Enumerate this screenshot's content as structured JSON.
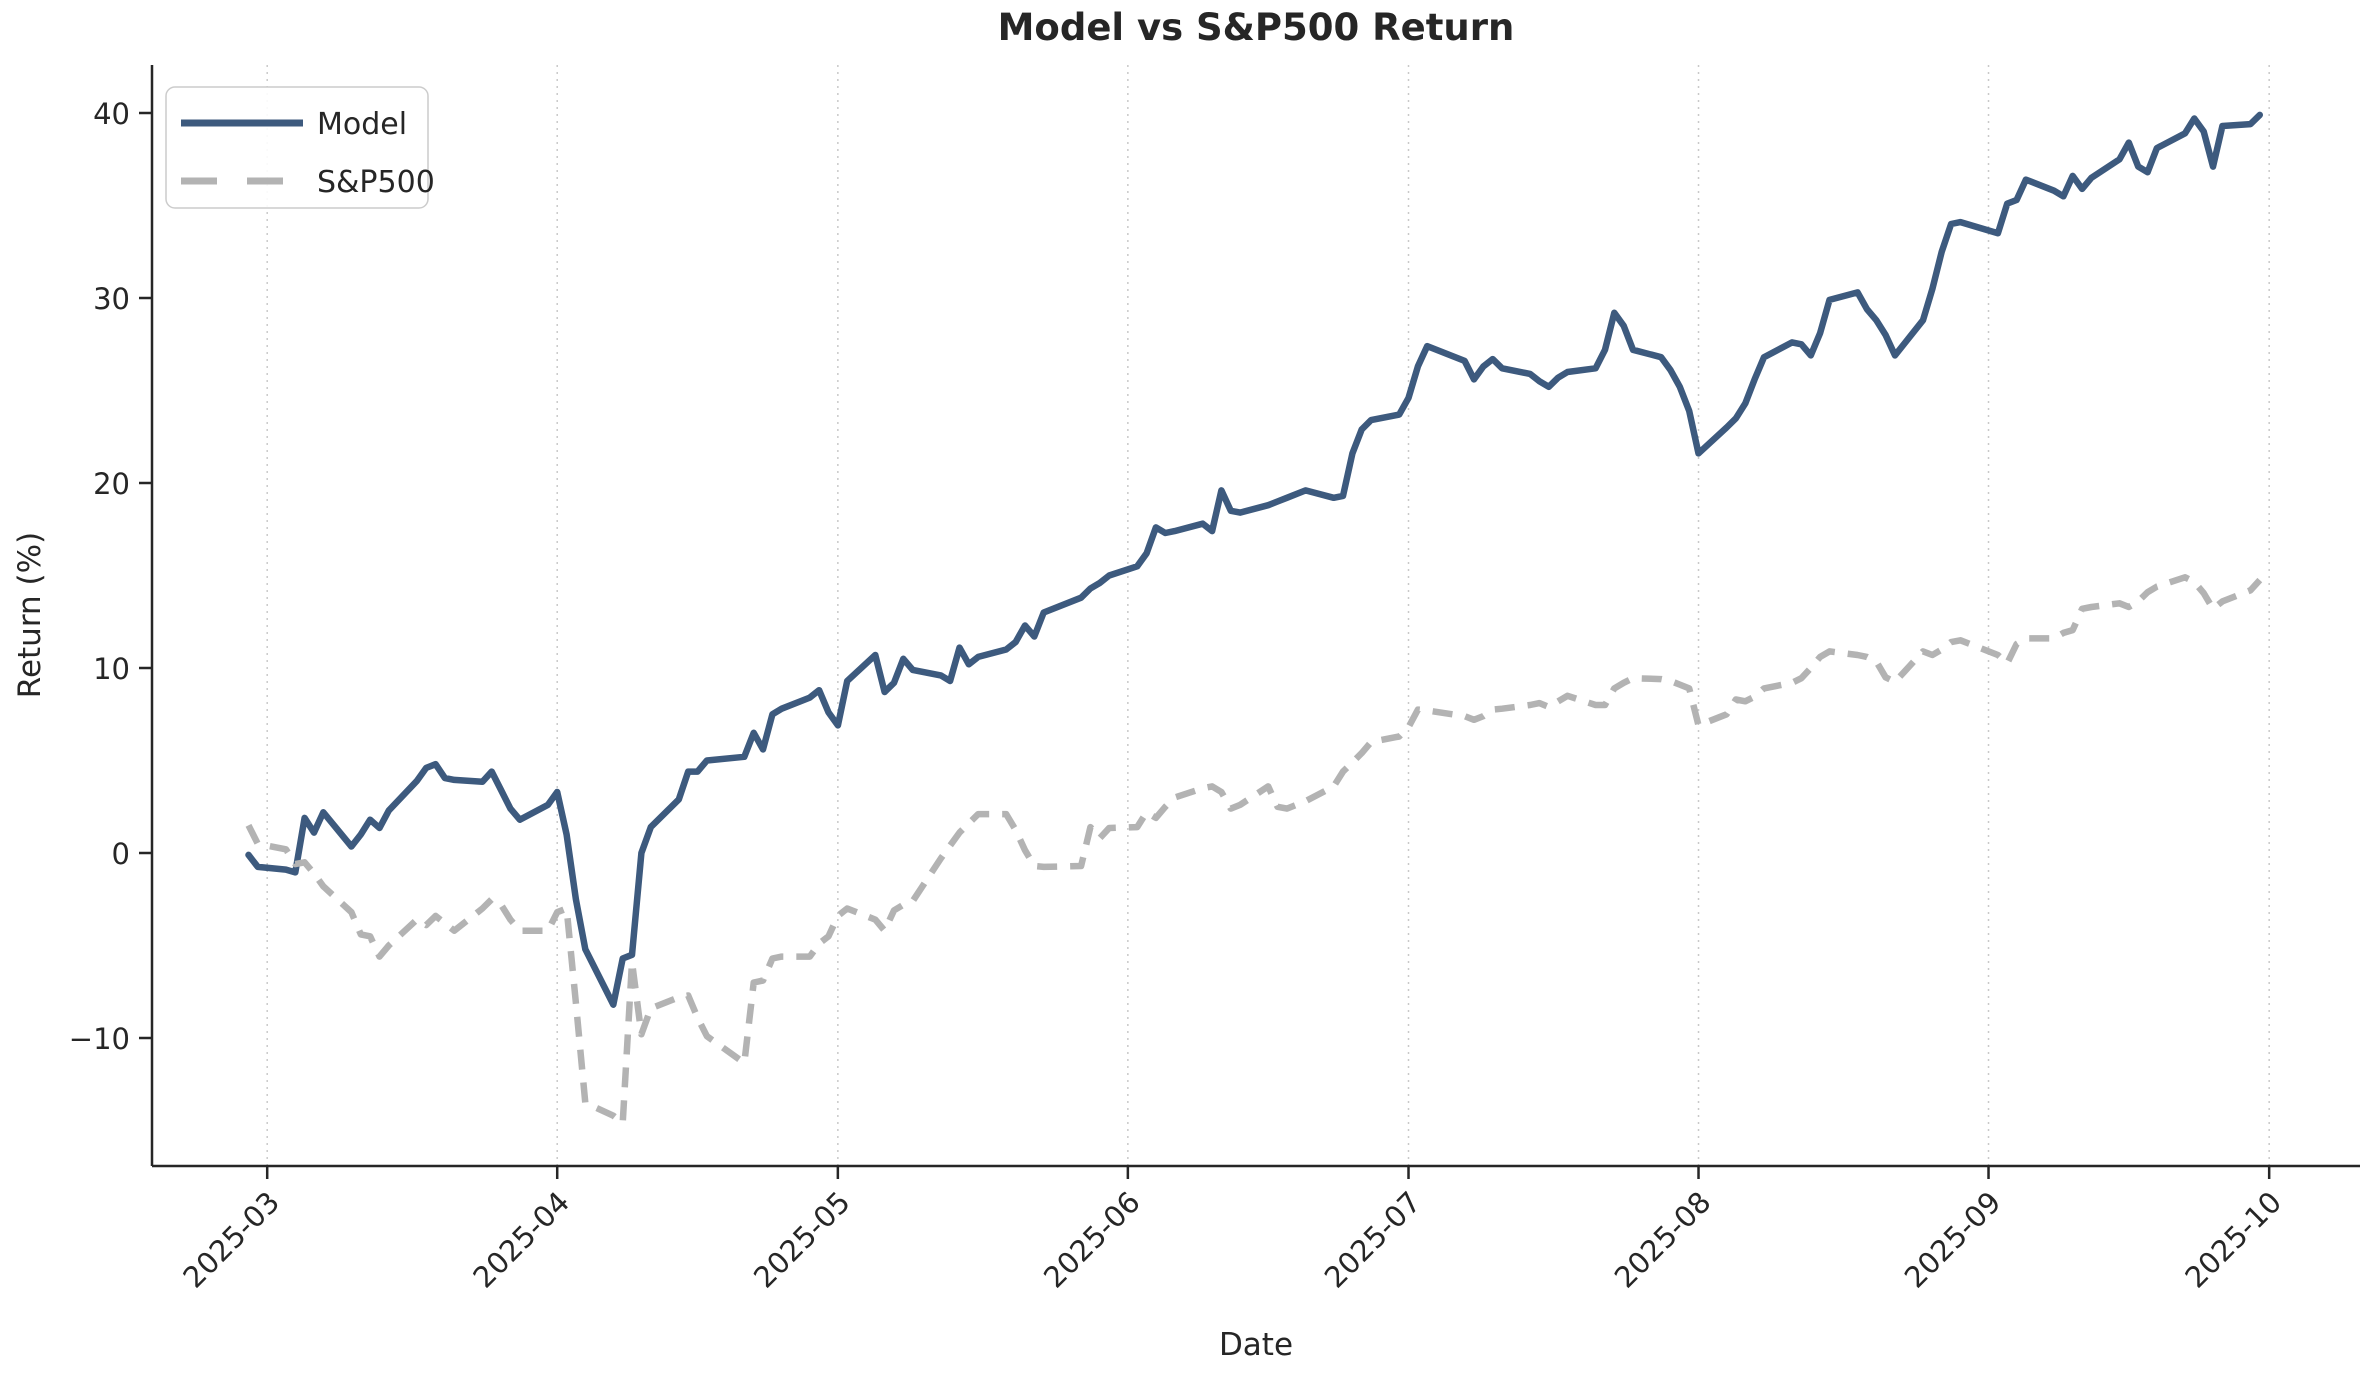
{
  "chart_data": {
    "type": "line",
    "title": "Model vs S&P500 Return",
    "xlabel": "Date",
    "ylabel": "Return (%)",
    "x_tick_labels": [
      "2025-03",
      "2025-04",
      "2025-05",
      "2025-06",
      "2025-07",
      "2025-08",
      "2025-09",
      "2025-10"
    ],
    "y_ticks": [
      -10,
      0,
      10,
      20,
      30,
      40
    ],
    "ylim": [
      -16.9,
      42.6
    ],
    "grid": "vertical-dotted-at-months",
    "background": "#ffffff",
    "spine_color": "#262626",
    "gridline_color": "#c9c9c9",
    "legend": {
      "position": "upper-left",
      "entries": [
        "Model",
        "S&P500"
      ]
    },
    "x": [
      "02-27",
      "02-28",
      "03-03",
      "03-04",
      "03-05",
      "03-06",
      "03-07",
      "03-10",
      "03-11",
      "03-12",
      "03-13",
      "03-14",
      "03-17",
      "03-18",
      "03-19",
      "03-20",
      "03-21",
      "03-24",
      "03-25",
      "03-26",
      "03-27",
      "03-28",
      "03-31",
      "04-01",
      "04-02",
      "04-03",
      "04-04",
      "04-07",
      "04-08",
      "04-09",
      "04-10",
      "04-11",
      "04-14",
      "04-15",
      "04-16",
      "04-17",
      "04-21",
      "04-22",
      "04-23",
      "04-24",
      "04-25",
      "04-28",
      "04-29",
      "04-30",
      "05-01",
      "05-02",
      "05-05",
      "05-06",
      "05-07",
      "05-08",
      "05-09",
      "05-12",
      "05-13",
      "05-14",
      "05-15",
      "05-16",
      "05-19",
      "05-20",
      "05-21",
      "05-22",
      "05-23",
      "05-27",
      "05-28",
      "05-29",
      "05-30",
      "06-02",
      "06-03",
      "06-04",
      "06-05",
      "06-06",
      "06-09",
      "06-10",
      "06-11",
      "06-12",
      "06-13",
      "06-16",
      "06-17",
      "06-18",
      "06-20",
      "06-23",
      "06-24",
      "06-25",
      "06-26",
      "06-27",
      "06-30",
      "07-01",
      "07-02",
      "07-03",
      "07-07",
      "07-08",
      "07-09",
      "07-10",
      "07-11",
      "07-14",
      "07-15",
      "07-16",
      "07-17",
      "07-18",
      "07-21",
      "07-22",
      "07-23",
      "07-24",
      "07-25",
      "07-28",
      "07-29",
      "07-30",
      "07-31",
      "08-01",
      "08-04",
      "08-05",
      "08-06",
      "08-07",
      "08-08",
      "08-11",
      "08-12",
      "08-13",
      "08-14",
      "08-15",
      "08-18",
      "08-19",
      "08-20",
      "08-21",
      "08-22",
      "08-25",
      "08-26",
      "08-27",
      "08-28",
      "08-29",
      "09-02",
      "09-03",
      "09-04",
      "09-05",
      "09-08",
      "09-09",
      "09-10",
      "09-11",
      "09-12",
      "09-15",
      "09-16",
      "09-17",
      "09-18",
      "09-19",
      "09-22",
      "09-23",
      "09-24",
      "09-25",
      "09-26",
      "09-29",
      "09-30"
    ],
    "series": [
      {
        "name": "Model",
        "color": "#3d5a7e",
        "style": "solid",
        "linewidth": 6.5,
        "values": [
          -0.1,
          -0.75,
          -0.9,
          -1.05,
          1.9,
          1.1,
          2.2,
          0.35,
          1.0,
          1.8,
          1.35,
          2.3,
          3.9,
          4.6,
          4.8,
          4.05,
          3.95,
          3.85,
          4.4,
          3.4,
          2.4,
          1.8,
          2.6,
          3.3,
          1.0,
          -2.5,
          -5.2,
          -8.2,
          -5.7,
          -5.5,
          0.0,
          1.4,
          2.9,
          4.4,
          4.4,
          5.0,
          5.2,
          6.5,
          5.6,
          7.5,
          7.8,
          8.4,
          8.8,
          7.6,
          6.9,
          9.3,
          10.7,
          8.7,
          9.2,
          10.5,
          9.9,
          9.6,
          9.3,
          11.1,
          10.2,
          10.6,
          11.0,
          11.4,
          12.3,
          11.7,
          13.0,
          13.8,
          14.3,
          14.6,
          15.0,
          15.5,
          16.2,
          17.6,
          17.3,
          17.4,
          17.8,
          17.4,
          19.6,
          18.5,
          18.4,
          18.8,
          19.0,
          19.2,
          19.6,
          19.2,
          19.3,
          21.6,
          22.9,
          23.4,
          23.7,
          24.6,
          26.3,
          27.4,
          26.6,
          25.6,
          26.3,
          26.7,
          26.2,
          25.9,
          25.5,
          25.2,
          25.7,
          26.0,
          26.2,
          27.2,
          29.2,
          28.5,
          27.2,
          26.8,
          26.1,
          25.2,
          23.9,
          21.6,
          23.0,
          23.5,
          24.3,
          25.6,
          26.8,
          27.6,
          27.5,
          26.9,
          28.1,
          29.9,
          30.3,
          29.4,
          28.8,
          28.0,
          26.9,
          28.8,
          30.5,
          32.5,
          34.0,
          34.1,
          33.5,
          35.1,
          35.3,
          36.4,
          35.8,
          35.5,
          36.6,
          35.9,
          36.5,
          37.5,
          38.4,
          37.1,
          36.8,
          38.1,
          38.9,
          39.7,
          39.0,
          37.1,
          39.3,
          39.4,
          39.9
        ]
      },
      {
        "name": "S&P500",
        "color": "#b3b3b3",
        "style": "dashed",
        "linewidth": 6.5,
        "values": [
          1.5,
          0.5,
          0.2,
          -0.6,
          -0.5,
          -1.1,
          -1.8,
          -3.2,
          -4.4,
          -4.5,
          -5.6,
          -5.0,
          -3.6,
          -3.9,
          -3.4,
          -3.8,
          -4.2,
          -3.0,
          -2.5,
          -2.8,
          -3.6,
          -4.2,
          -4.2,
          -3.2,
          -3.0,
          -8.1,
          -13.5,
          -14.2,
          -14.6,
          -5.9,
          -9.8,
          -8.4,
          -7.8,
          -7.7,
          -8.9,
          -9.9,
          -11.35,
          -7.0,
          -6.9,
          -5.7,
          -5.6,
          -5.6,
          -4.9,
          -4.5,
          -3.4,
          -3.0,
          -3.6,
          -4.2,
          -3.1,
          -2.8,
          -2.6,
          -0.3,
          0.4,
          1.1,
          1.6,
          2.1,
          2.1,
          1.25,
          0.15,
          -0.7,
          -0.75,
          -0.7,
          1.4,
          0.8,
          1.35,
          1.4,
          2.2,
          1.9,
          2.5,
          3.0,
          3.5,
          3.6,
          3.3,
          2.4,
          2.6,
          3.6,
          2.5,
          2.4,
          2.8,
          3.6,
          4.4,
          4.9,
          5.4,
          6.0,
          6.3,
          6.8,
          7.75,
          7.7,
          7.4,
          7.2,
          7.4,
          7.75,
          7.8,
          8.0,
          8.1,
          7.9,
          8.2,
          8.5,
          8.0,
          8.0,
          8.9,
          9.2,
          9.45,
          9.4,
          9.3,
          9.1,
          8.9,
          6.9,
          7.5,
          8.3,
          8.2,
          8.45,
          8.9,
          9.2,
          9.45,
          10.0,
          10.6,
          10.9,
          10.7,
          10.6,
          10.35,
          9.5,
          9.25,
          10.9,
          10.7,
          11.0,
          11.4,
          11.5,
          10.7,
          10.25,
          11.3,
          11.6,
          11.6,
          11.9,
          12.05,
          13.2,
          13.3,
          13.5,
          13.3,
          13.6,
          14.1,
          14.4,
          14.9,
          14.65,
          14.05,
          13.2,
          13.6,
          14.2,
          14.75
        ]
      }
    ]
  }
}
